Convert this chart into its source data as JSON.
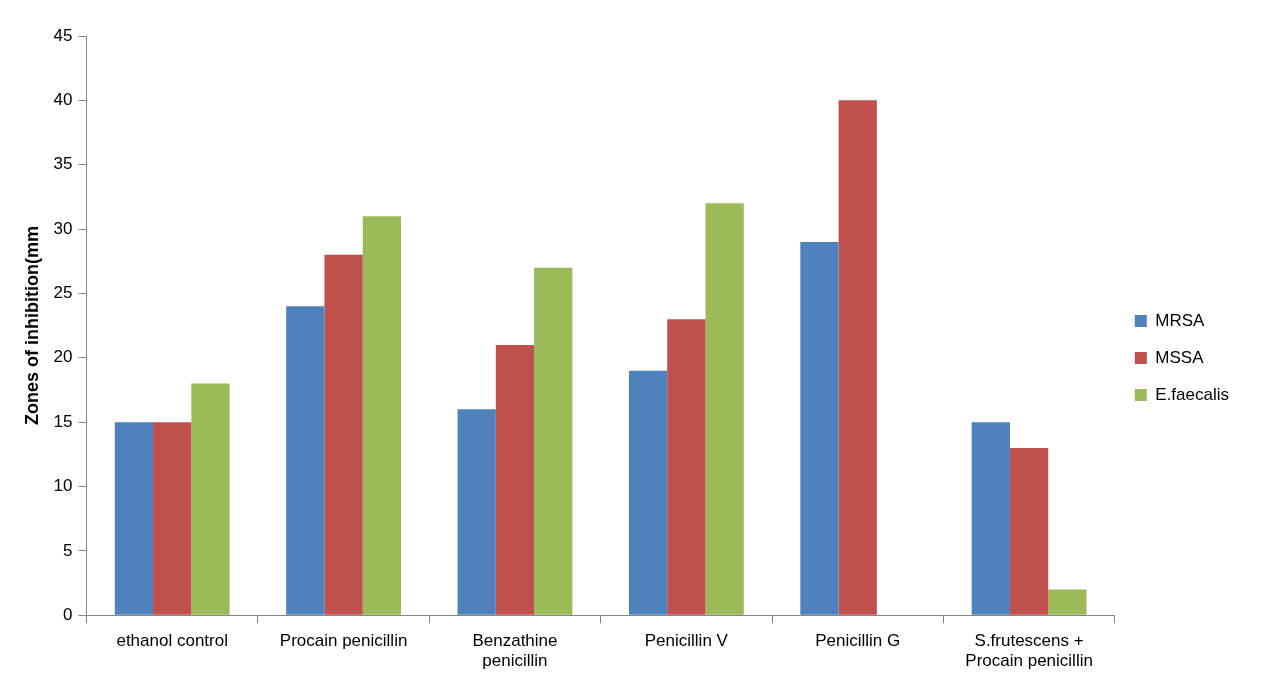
{
  "chart_data": {
    "type": "bar",
    "ylabel": "Zones of inhibition(mm",
    "categories": [
      "ethanol control",
      "Procain penicillin",
      "Benzathine penicillin",
      "Penicillin V",
      "Penicillin G",
      "S.frutescens + Procain penicillin"
    ],
    "series": [
      {
        "name": "MRSA",
        "color": "#4f81bd",
        "values": [
          15,
          24,
          16,
          19,
          29,
          15
        ]
      },
      {
        "name": "MSSA",
        "color": "#c0504d",
        "values": [
          15,
          28,
          21,
          23,
          40,
          13
        ]
      },
      {
        "name": "E.faecalis",
        "color": "#9bbb59",
        "values": [
          18,
          31,
          27,
          32,
          null,
          2
        ]
      }
    ],
    "ylim": [
      0,
      45
    ],
    "yticks": [
      0,
      5,
      10,
      15,
      20,
      25,
      30,
      35,
      40,
      45
    ],
    "grid": false,
    "legend": "right"
  }
}
